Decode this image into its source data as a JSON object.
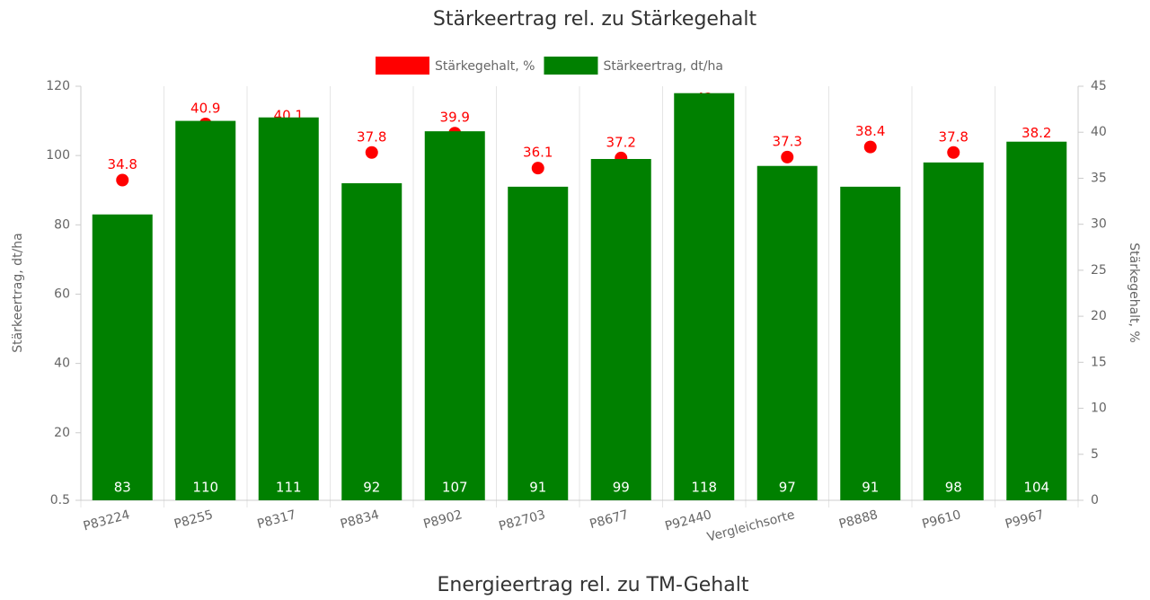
{
  "chart_data": [
    {
      "type": "bar",
      "title": "Stärkeertrag rel. zu Stärkegehalt",
      "categories": [
        "P83224",
        "P8255",
        "P8317",
        "P8834",
        "P8902",
        "P82703",
        "P8677",
        "P92440",
        "Vergleichsorte",
        "P8888",
        "P9610",
        "P9967"
      ],
      "series": [
        {
          "name": "Stärkegehalt, %",
          "type": "scatter",
          "color": "#ff0000",
          "axis": "y2",
          "values": [
            34.8,
            40.9,
            40.1,
            37.8,
            39.9,
            36.1,
            37.2,
            42,
            37.3,
            38.4,
            37.8,
            38.2
          ]
        },
        {
          "name": "Stärkeertrag, dt/ha",
          "type": "bar",
          "color": "#008000",
          "values": [
            83,
            110,
            111,
            92,
            107,
            91,
            99,
            118,
            97,
            91,
            98,
            104
          ]
        }
      ],
      "ylabel": "Stärkeertrag, dt/ha",
      "y2label": "Stärkegehalt, %",
      "ylim": [
        0.5,
        120
      ],
      "yticks": [
        0.5,
        20,
        40,
        60,
        80,
        100,
        120
      ],
      "y2lim": [
        0,
        45
      ],
      "y2ticks": [
        0,
        5,
        10,
        15,
        20,
        25,
        30,
        35,
        40,
        45
      ]
    },
    {
      "type": "bar",
      "title": "Energieertrag rel. zu TM-Gehalt"
    }
  ]
}
